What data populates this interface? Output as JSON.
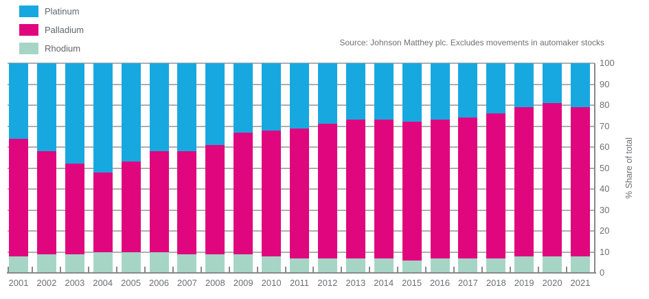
{
  "legend": {
    "items": [
      {
        "label": "Platinum",
        "color": "#18a8e0"
      },
      {
        "label": "Palladium",
        "color": "#e0067e"
      },
      {
        "label": "Rhodium",
        "color": "#a6d5c6"
      }
    ]
  },
  "source_note": "Source: Johnson Matthey plc. Excludes movements in automaker stocks",
  "chart_data": {
    "type": "bar",
    "stacked": true,
    "title": "",
    "xlabel": "",
    "ylabel": "% Share of total",
    "ylim": [
      0,
      100
    ],
    "yticks": [
      0,
      10,
      20,
      30,
      40,
      50,
      60,
      70,
      80,
      90,
      100
    ],
    "grid": true,
    "legend_position": "top-left",
    "y_axis_side": "right",
    "categories": [
      "2001",
      "2002",
      "2003",
      "2004",
      "2005",
      "2006",
      "2007",
      "2008",
      "2009",
      "2010",
      "2011",
      "2012",
      "2013",
      "2014",
      "2015",
      "2016",
      "2017",
      "2018",
      "2019",
      "2020",
      "2021"
    ],
    "series": [
      {
        "name": "Rhodium",
        "color": "#a6d5c6",
        "values": [
          8,
          9,
          9,
          10,
          10,
          10,
          9,
          9,
          9,
          8,
          7,
          7,
          7,
          7,
          6,
          7,
          7,
          7,
          8,
          8,
          8
        ]
      },
      {
        "name": "Palladium",
        "color": "#e0067e",
        "values": [
          56,
          49,
          43,
          38,
          43,
          48,
          49,
          52,
          58,
          60,
          62,
          64,
          66,
          66,
          66,
          66,
          67,
          69,
          71,
          73,
          71
        ]
      },
      {
        "name": "Platinum",
        "color": "#18a8e0",
        "values": [
          36,
          42,
          48,
          52,
          47,
          42,
          42,
          39,
          33,
          32,
          31,
          29,
          27,
          27,
          28,
          27,
          26,
          24,
          21,
          19,
          21
        ]
      }
    ]
  }
}
